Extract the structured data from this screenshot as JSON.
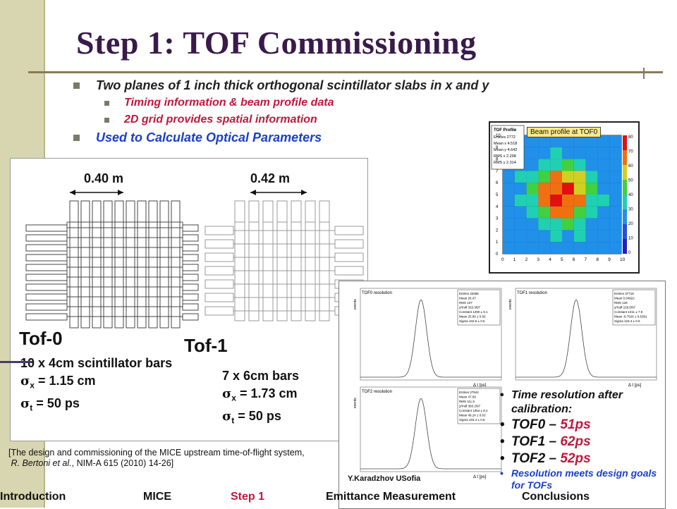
{
  "title": "Step 1: TOF Commissioning",
  "bullets": [
    {
      "level": 1,
      "text": "Two planes of 1 inch thick orthogonal scintillator slabs in x and y",
      "color": "#222222"
    },
    {
      "level": 2,
      "text": "Timing information & beam profile data",
      "color": "#c0183c"
    },
    {
      "level": 2,
      "text": "2D grid provides spatial information",
      "color": "#c0183c"
    },
    {
      "level": 1,
      "text": "Used to Calculate Optical Parameters",
      "color": "#1a3fc8"
    }
  ],
  "tof_figure": {
    "dim_tof0": "0.40 m",
    "dim_tof1": "0.42 m",
    "tof0_label": "Tof-0",
    "tof1_label": "Tof-1",
    "tof0_spec_bars": "10 x 4cm scintillator bars",
    "tof0_sigma_x": "= 1.15 cm",
    "tof0_sigma_t": "= 50 ps",
    "tof1_spec_bars": "7 x 6cm bars",
    "tof1_sigma_x": "= 1.73 cm",
    "tof1_sigma_t": "= 50 ps"
  },
  "beam_profile": {
    "caption": "Beam profile at TOF0",
    "stats_title": "TOF Profile",
    "stats": [
      "Entries 2772",
      "Mean x 4.518",
      "Mean y 4.642",
      "RMS x 2.298",
      "RMS y 2.314"
    ],
    "x_ticks": [
      "0",
      "1",
      "2",
      "3",
      "4",
      "5",
      "6",
      "7",
      "8",
      "9",
      "10"
    ],
    "y_ticks": [
      "0",
      "1",
      "2",
      "3",
      "4",
      "5",
      "6",
      "7",
      "8",
      "9",
      "10"
    ],
    "z_ticks": [
      "80",
      "70",
      "60",
      "50",
      "40",
      "30",
      "20",
      "10",
      "0"
    ]
  },
  "resolution": {
    "plots": [
      {
        "title": "TOF0 resolution",
        "stats": [
          "Entries 33486",
          "Mean 26.47",
          "RMS 107",
          "χ²/ndf 333.3/97",
          "Constant 1290 ± 9.1",
          "Mean 25.89 ± 0.56",
          "Sigma 102.5 ± 0.5"
        ]
      },
      {
        "title": "TOF1 resolution",
        "stats": [
          "Entries 37715",
          "Mean 0.04922",
          "RMS 126",
          "χ²/ndf 229.5/97",
          "Constant 1211 ± 7.9",
          "Mean -8.7526 ± 0.6391",
          "Sigma 123.4 ± 0.5"
        ]
      },
      {
        "title": "TOF2 resolution",
        "stats": [
          "Entries 27944",
          "Mean 47.09",
          "RMS 111.9",
          "χ²/ndf 360.2/97",
          "Constant 1054 ± 8.2",
          "Mean 49.24 ± 0.63",
          "Sigma 104.4 ± 0.5"
        ]
      }
    ],
    "x_axis_label": "Δ t [ps]",
    "y_axis_label": "events",
    "bullet_intro": "Time resolution after calibration:",
    "tof0": "TOF0 – ",
    "tof0_val": "51ps",
    "tof1": "TOF1 – ",
    "tof1_val": "62ps",
    "tof2": "TOF2 – ",
    "tof2_val": "52ps",
    "meets": "Resolution meets design goals for TOFs",
    "author": "Y.Karadzhov USofia"
  },
  "reference": {
    "line1": "[The design and commissioning of the MICE upstream time-of-flight system,",
    "authors": "R. Bertoni et al.",
    "line2": ", NIM-A 615 (2010) 14-26]"
  },
  "nav": {
    "items": [
      "Introduction",
      "MICE",
      "Step 1",
      "Emittance Measurement",
      "Conclusions"
    ],
    "active_index": 2,
    "active_color": "#c0183c"
  }
}
